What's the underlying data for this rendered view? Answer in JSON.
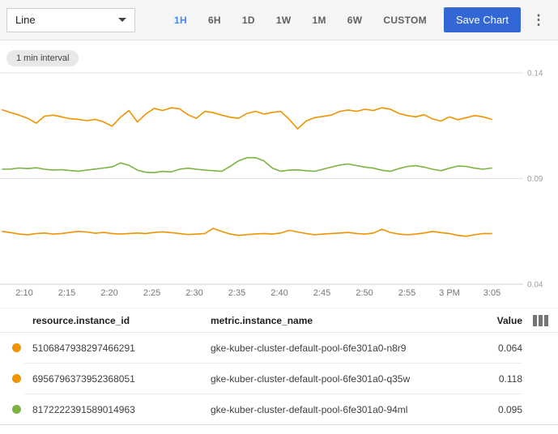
{
  "toolbar": {
    "chart_type_selected": "Line",
    "time_ranges": [
      "1H",
      "6H",
      "1D",
      "1W",
      "1M",
      "6W",
      "CUSTOM"
    ],
    "selected_range": "1H",
    "save_label": "Save Chart"
  },
  "icons": {
    "more_vert": "⋮"
  },
  "chip": {
    "label": "1 min interval"
  },
  "chart_data": {
    "type": "line",
    "title": "",
    "xlabel": "",
    "ylabel": "",
    "interval": "1 min",
    "ylim": [
      0.04,
      0.14
    ],
    "y_ticks": [
      0.14,
      0.09,
      0.04
    ],
    "x_ticks": [
      "2:10",
      "2:15",
      "2:20",
      "2:25",
      "2:30",
      "2:35",
      "2:40",
      "2:45",
      "2:50",
      "2:55",
      "3 PM",
      "3:05"
    ],
    "grid": true,
    "legend_position": "bottom-table",
    "series": [
      {
        "name": "gke-kuber-cluster-default-pool-6fe301a0-q35w",
        "color": "#F09300",
        "current_value": 0.118,
        "values": [
          0.1225,
          0.1212,
          0.12,
          0.1185,
          0.1162,
          0.1195,
          0.12,
          0.1192,
          0.1183,
          0.118,
          0.1174,
          0.118,
          0.1168,
          0.1148,
          0.119,
          0.1222,
          0.1168,
          0.1205,
          0.1232,
          0.1222,
          0.1235,
          0.123,
          0.1202,
          0.1185,
          0.1218,
          0.1212,
          0.12,
          0.119,
          0.1185,
          0.1208,
          0.1218,
          0.1205,
          0.1213,
          0.1218,
          0.118,
          0.1135,
          0.1172,
          0.1188,
          0.1194,
          0.12,
          0.1218,
          0.1224,
          0.1218,
          0.1228,
          0.1222,
          0.1235,
          0.1228,
          0.1208,
          0.1198,
          0.1192,
          0.1202,
          0.1182,
          0.1172,
          0.1192,
          0.1178,
          0.1188,
          0.1198,
          0.1192,
          0.118
        ]
      },
      {
        "name": "gke-kuber-cluster-default-pool-6fe301a0-94ml",
        "color": "#7CB342",
        "current_value": 0.095,
        "values": [
          0.0944,
          0.0945,
          0.095,
          0.0947,
          0.0951,
          0.0944,
          0.094,
          0.0942,
          0.0938,
          0.0935,
          0.094,
          0.0945,
          0.095,
          0.0955,
          0.0974,
          0.0963,
          0.094,
          0.093,
          0.0928,
          0.0934,
          0.0931,
          0.0944,
          0.0949,
          0.0944,
          0.094,
          0.0937,
          0.0934,
          0.0958,
          0.0984,
          0.0999,
          0.0999,
          0.0984,
          0.095,
          0.0934,
          0.094,
          0.0941,
          0.0937,
          0.0934,
          0.0944,
          0.0954,
          0.0964,
          0.0969,
          0.0961,
          0.0954,
          0.0949,
          0.0939,
          0.0934,
          0.0947,
          0.0957,
          0.0961,
          0.0954,
          0.0944,
          0.0937,
          0.0949,
          0.0959,
          0.0957,
          0.0949,
          0.0944,
          0.095
        ]
      },
      {
        "name": "gke-kuber-cluster-default-pool-6fe301a0-n8r9",
        "color": "#F09300",
        "current_value": 0.064,
        "values": [
          0.065,
          0.0644,
          0.0637,
          0.0634,
          0.064,
          0.0642,
          0.0637,
          0.064,
          0.0645,
          0.065,
          0.0647,
          0.0641,
          0.0645,
          0.064,
          0.0637,
          0.064,
          0.0642,
          0.064,
          0.0645,
          0.0648,
          0.0644,
          0.064,
          0.0635,
          0.0637,
          0.064,
          0.0664,
          0.065,
          0.0637,
          0.0631,
          0.0635,
          0.0638,
          0.064,
          0.0637,
          0.0642,
          0.0655,
          0.0647,
          0.064,
          0.0634,
          0.0637,
          0.064,
          0.0642,
          0.0645,
          0.064,
          0.0637,
          0.0642,
          0.066,
          0.0645,
          0.0637,
          0.0634,
          0.0637,
          0.0642,
          0.065,
          0.0644,
          0.064,
          0.0631,
          0.0627,
          0.0634,
          0.064,
          0.064
        ]
      }
    ]
  },
  "table": {
    "columns": [
      "resource.instance_id",
      "metric.instance_name",
      "Value"
    ],
    "rows": [
      {
        "color": "#F09300",
        "instance_id": "5106847938297466291",
        "instance_name": "gke-kuber-cluster-default-pool-6fe301a0-n8r9",
        "value": "0.064"
      },
      {
        "color": "#F09300",
        "instance_id": "6956796373952368051",
        "instance_name": "gke-kuber-cluster-default-pool-6fe301a0-q35w",
        "value": "0.118"
      },
      {
        "color": "#7CB342",
        "instance_id": "8172222391589014963",
        "instance_name": "gke-kuber-cluster-default-pool-6fe301a0-94ml",
        "value": "0.095"
      }
    ]
  },
  "colors": {
    "accent_blue": "#4285F4",
    "save_button_blue": "#3367D6",
    "series_orange": "#F09300",
    "series_green": "#7CB342",
    "gridline": "#E3E3E3",
    "axis_line": "#CFCFCF",
    "toolbar_bg": "#F5F5F5"
  }
}
